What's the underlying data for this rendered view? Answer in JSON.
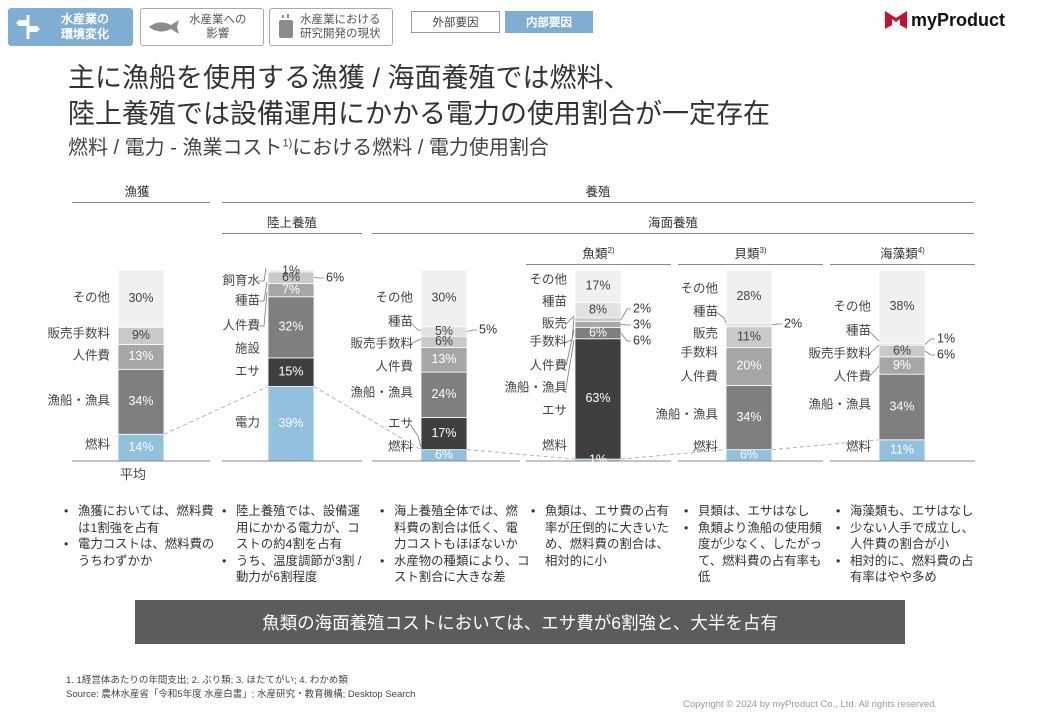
{
  "nav": {
    "active_label_1": "水産業の",
    "active_label_2": "環境変化",
    "btn1_line1": "水産業への",
    "btn1_line2": "影響",
    "btn2_line1": "水産業における",
    "btn2_line2": "研究開発の現状",
    "tab_external": "外部要因",
    "tab_internal": "内部要因"
  },
  "logo": {
    "text": "myProduct"
  },
  "title": {
    "line1": "主に漁船を使用する漁獲 / 海面養殖では燃料、",
    "line2": "陸上養殖では設備運用にかかる電力の使用割合が一定存在",
    "subtitle_pre": "燃料 / 電力 - 漁業コスト",
    "subtitle_sup": "1)",
    "subtitle_post": "における燃料 / 電力使用割合"
  },
  "headers": {
    "gyokaku": "漁獲",
    "yoshoku": "養殖",
    "rikujo": "陸上養殖",
    "kaimen": "海面養殖",
    "gyorui": "魚類",
    "gyorui_sup": "2)",
    "kairui": "貝類",
    "kairui_sup": "3)",
    "kaisou": "海藻類",
    "kaisou_sup": "4)"
  },
  "chart_data": {
    "type": "bar",
    "stacked": true,
    "unit": "%",
    "bars": [
      {
        "group": "漁獲",
        "name": "平均",
        "segments": [
          {
            "label": "燃料",
            "value": 14,
            "display": "14%",
            "color": "#92c0df"
          },
          {
            "label": "漁船・漁具",
            "value": 34,
            "display": "34%",
            "color": "#7f7f7f"
          },
          {
            "label": "人件費",
            "value": 13,
            "display": "13%",
            "color": "#a6a6a6"
          },
          {
            "label": "販売手数料",
            "value": 9,
            "display": "9%",
            "color": "#c9c9c9"
          },
          {
            "label": "その他",
            "value": 30,
            "display": "30%",
            "color": "#f0f0f0"
          }
        ]
      },
      {
        "group": "陸上養殖",
        "name": "陸上養殖",
        "segments": [
          {
            "label": "電力",
            "value": 39,
            "display": "39%",
            "color": "#92c0df"
          },
          {
            "label": "エサ",
            "value": 15,
            "display": "15%",
            "color": "#3f3f3f"
          },
          {
            "label": "施設",
            "value": 32,
            "display": "32%",
            "color": "#7f7f7f"
          },
          {
            "label": "人件費",
            "value": 7,
            "display": "7%",
            "color": "#a6a6a6"
          },
          {
            "label": "種苗",
            "value": 6,
            "display": "6%",
            "color": "#c9c9c9"
          },
          {
            "label": "飼育水",
            "value": 1,
            "display": "1%",
            "color": "#e2e2e2"
          }
        ]
      },
      {
        "group": "海面養殖",
        "name": "海面養殖全体",
        "segments": [
          {
            "label": "燃料",
            "value": 6,
            "display": "6%",
            "color": "#92c0df"
          },
          {
            "label": "エサ",
            "value": 17,
            "display": "17%",
            "color": "#3f3f3f"
          },
          {
            "label": "漁船・漁具",
            "value": 24,
            "display": "24%",
            "color": "#7f7f7f"
          },
          {
            "label": "人件費",
            "value": 13,
            "display": "13%",
            "color": "#a6a6a6"
          },
          {
            "label": "販売手数料",
            "value": 6,
            "display": "6%",
            "color": "#c9c9c9"
          },
          {
            "label": "種苗",
            "value": 5,
            "display": "5%",
            "color": "#e2e2e2"
          },
          {
            "label": "その他",
            "value": 30,
            "display": "30%",
            "color": "#f0f0f0"
          }
        ]
      },
      {
        "group": "魚類",
        "name": "魚類",
        "segments": [
          {
            "label": "燃料",
            "value": 1,
            "display": "1%",
            "color": "#92c0df"
          },
          {
            "label": "エサ",
            "value": 63,
            "display": "63%",
            "color": "#3f3f3f"
          },
          {
            "label": "漁船・漁具",
            "value": 6,
            "display": "6%",
            "color": "#7f7f7f"
          },
          {
            "label": "人件費",
            "value": 3,
            "display": "3%",
            "color": "#a6a6a6"
          },
          {
            "label": "販売手数料",
            "value": 2,
            "display": "2%",
            "color": "#c9c9c9"
          },
          {
            "label": "種苗",
            "value": 8,
            "display": "8%",
            "color": "#e2e2e2"
          },
          {
            "label": "その他",
            "value": 17,
            "display": "17%",
            "color": "#f0f0f0"
          }
        ]
      },
      {
        "group": "貝類",
        "name": "貝類",
        "segments": [
          {
            "label": "燃料",
            "value": 6,
            "display": "6%",
            "color": "#92c0df"
          },
          {
            "label": "漁船・漁具",
            "value": 34,
            "display": "34%",
            "color": "#7f7f7f"
          },
          {
            "label": "人件費",
            "value": 20,
            "display": "20%",
            "color": "#a6a6a6"
          },
          {
            "label": "販売手数料",
            "value": 11,
            "display": "11%",
            "color": "#c9c9c9"
          },
          {
            "label": "種苗",
            "value": 2,
            "display": "2%",
            "color": "#e2e2e2"
          },
          {
            "label": "その他",
            "value": 28,
            "display": "28%",
            "color": "#f0f0f0"
          }
        ]
      },
      {
        "group": "海藻類",
        "name": "海藻類",
        "segments": [
          {
            "label": "燃料",
            "value": 11,
            "display": "11%",
            "color": "#92c0df"
          },
          {
            "label": "漁船・漁具",
            "value": 34,
            "display": "34%",
            "color": "#7f7f7f"
          },
          {
            "label": "人件費",
            "value": 9,
            "display": "9%",
            "color": "#a6a6a6"
          },
          {
            "label": "販売手数料",
            "value": 6,
            "display": "6%",
            "color": "#c9c9c9"
          },
          {
            "label": "種苗",
            "value": 1,
            "display": "1%",
            "color": "#e2e2e2"
          },
          {
            "label": "その他",
            "value": 38,
            "display": "38%",
            "color": "#f0f0f0"
          }
        ]
      }
    ],
    "category_labels": {
      "gyokaku": [
        "その他",
        "販売手数料",
        "人件費",
        "漁船・漁具",
        "燃料"
      ],
      "rikujo": [
        "飼育水",
        "種苗",
        "人件費",
        "施設",
        "エサ",
        "電力"
      ],
      "kaimen": [
        "その他",
        "種苗",
        "販売手数料",
        "人件費",
        "漁船・漁具",
        "エサ",
        "燃料"
      ],
      "gyorui": [
        "その他",
        "種苗",
        "販売",
        "手数料",
        "人件費",
        "漁船・漁具",
        "エサ",
        "燃料"
      ],
      "kairui": [
        "その他",
        "種苗",
        "販売",
        "手数料",
        "人件費",
        "漁船・漁具",
        "燃料"
      ],
      "kaisou": [
        "その他",
        "種苗",
        "販売手数料",
        "人件費",
        "漁船・漁具",
        "燃料"
      ]
    },
    "x_label_first": "平均"
  },
  "bullets": {
    "col1": [
      "漁獲においては、燃料費は1割強を占有",
      "電力コストは、燃料費のうちわずかか"
    ],
    "col2": [
      "陸上養殖では、設備運用にかかる電力が、コストの約4割を占有",
      "うち、温度調節が3割 / 動力が6割程度"
    ],
    "col3": [
      "海上養殖全体では、燃料費の割合は低く、電力コストもほぼないか",
      "水産物の種類により、コスト割合に大きな差"
    ],
    "col4": [
      "魚類は、エサ費の占有率が圧倒的に大きいため、燃料費の割合は、相対的に小"
    ],
    "col5": [
      "貝類は、エサはなし",
      "魚類より漁船の使用頻度が少なく、したがって、燃料費の占有率も低"
    ],
    "col6": [
      "海藻類も、エサはなし",
      "少ない人手で成立し、人件費の割合が小",
      "相対的に、燃料費の占有率はやや多め"
    ]
  },
  "banner": {
    "text": "魚類の海面養殖コストにおいては、エサ費が6割強と、大半を占有"
  },
  "footnote": {
    "line1": "1. 1経営体あたりの年間支出; 2. ぶり類; 3. ほたてがい; 4. わかめ類",
    "line2": "Source: 農林水産省「令和5年度 水産白書」; 水産研究・教育機構; Desktop Search"
  },
  "copyright": "Copyright © 2024 by myProduct Co., Ltd.  All rights reserved."
}
